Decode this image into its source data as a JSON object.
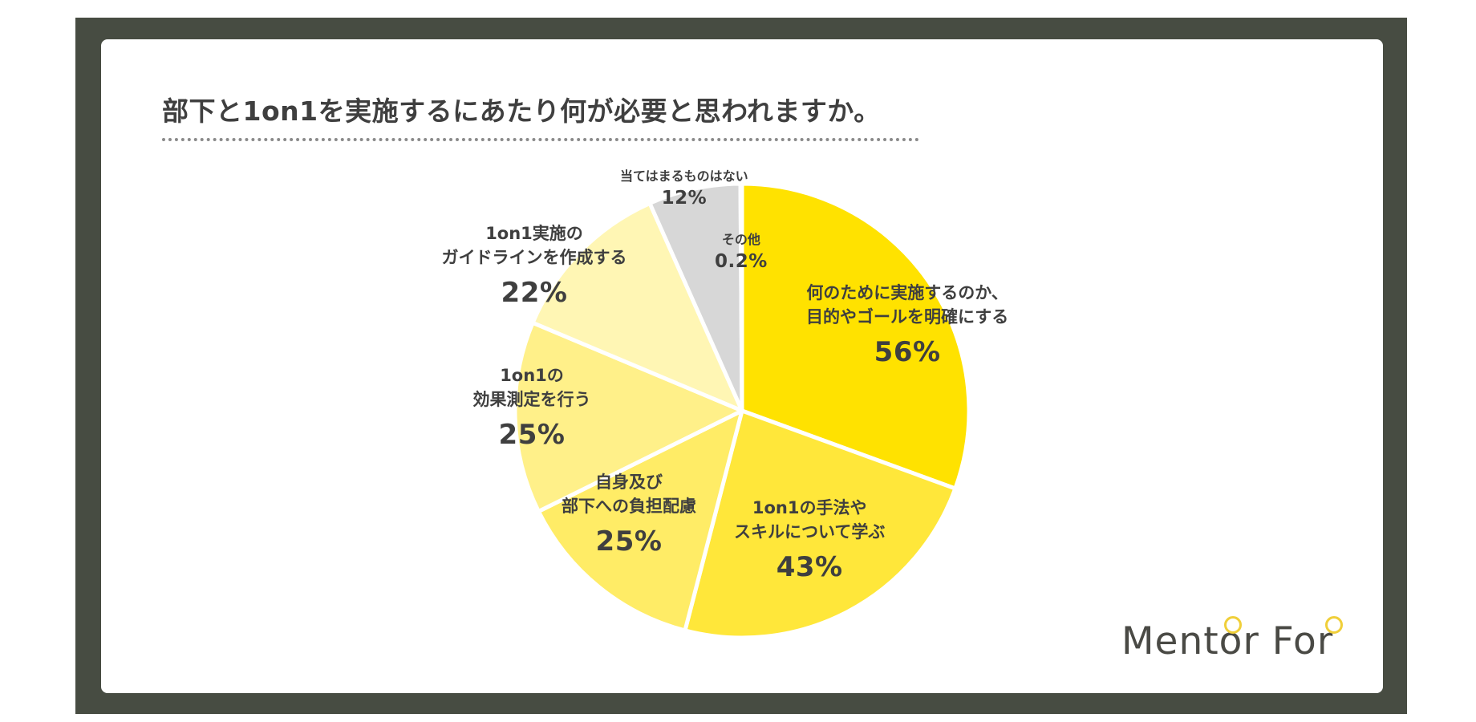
{
  "title": "部下と1on1を実施するにあたり何が必要と思われますか。",
  "logo": "Mentor For",
  "chart_data": {
    "type": "pie",
    "title": "部下と1on1を実施するにあたり何が必要と思われますか。",
    "slices": [
      {
        "label_lines": [
          "何のために実施するのか、",
          "目的やゴールを明確にする"
        ],
        "value": 56,
        "display": "56%",
        "color": "#ffe200"
      },
      {
        "label_lines": [
          "1on1の手法や",
          "スキルについて学ぶ"
        ],
        "value": 43,
        "display": "43%",
        "color": "#ffe73a"
      },
      {
        "label_lines": [
          "自身及び",
          "部下への負担配慮"
        ],
        "value": 25,
        "display": "25%",
        "color": "#ffec66"
      },
      {
        "label_lines": [
          "1on1の",
          "効果測定を行う"
        ],
        "value": 25,
        "display": "25%",
        "color": "#fff089"
      },
      {
        "label_lines": [
          "1on1実施の",
          "ガイドラインを作成する"
        ],
        "value": 22,
        "display": "22%",
        "color": "#fff6b4"
      },
      {
        "label_lines": [
          "当てはまるものはない"
        ],
        "value": 12,
        "display": "12%",
        "color": "#d7d7d7"
      },
      {
        "label_lines": [
          "その他"
        ],
        "value": 0.2,
        "display": "0.2%",
        "color": "#bdbdbd"
      }
    ]
  }
}
